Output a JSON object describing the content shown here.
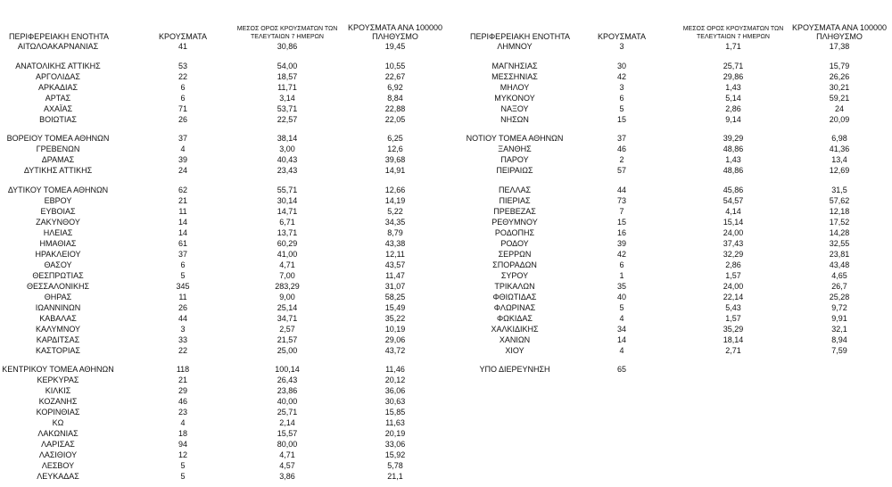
{
  "left": {
    "header": [
      "ΠΕΡΙΦΕΡΕΙΑΚΗ ΕΝΟΤΗΤΑ",
      "ΚΡΟΥΣΜΑΤΑ",
      "ΜΕΣΟΣ ΟΡΟΣ ΚΡΟΥΣΜΑΤΩΝ ΤΩΝ ΤΕΛΕΥΤΑΙΩΝ 7 ΗΜΕΡΩΝ",
      "ΚΡΟΥΣΜΑΤΑ ΑΝΑ 100000 ΠΛΗΘΥΣΜΟ"
    ],
    "groups": [
      [
        [
          "ΑΙΤΩΛΟΑΚΑΡΝΑΝΙΑΣ",
          "41",
          "30,86",
          "19,45"
        ]
      ],
      [
        [
          "ΑΝΑΤΟΛΙΚΗΣ ΑΤΤΙΚΗΣ",
          "53",
          "54,00",
          "10,55"
        ],
        [
          "ΑΡΓΟΛΙΔΑΣ",
          "22",
          "18,57",
          "22,67"
        ],
        [
          "ΑΡΚΑΔΙΑΣ",
          "6",
          "11,71",
          "6,92"
        ],
        [
          "ΑΡΤΑΣ",
          "6",
          "3,14",
          "8,84"
        ],
        [
          "ΑΧΑΪΑΣ",
          "71",
          "53,71",
          "22,88"
        ],
        [
          "ΒΟΙΩΤΙΑΣ",
          "26",
          "22,57",
          "22,05"
        ]
      ],
      [
        [
          "ΒΟΡΕΙΟΥ ΤΟΜΕΑ ΑΘΗΝΩΝ",
          "37",
          "38,14",
          "6,25"
        ],
        [
          "ΓΡΕΒΕΝΩΝ",
          "4",
          "3,00",
          "12,6"
        ],
        [
          "ΔΡΑΜΑΣ",
          "39",
          "40,43",
          "39,68"
        ],
        [
          "ΔΥΤΙΚΗΣ ΑΤΤΙΚΗΣ",
          "24",
          "23,43",
          "14,91"
        ]
      ],
      [
        [
          "ΔΥΤΙΚΟΥ ΤΟΜΕΑ ΑΘΗΝΩΝ",
          "62",
          "55,71",
          "12,66"
        ],
        [
          "ΕΒΡΟΥ",
          "21",
          "30,14",
          "14,19"
        ],
        [
          "ΕΥΒΟΙΑΣ",
          "11",
          "14,71",
          "5,22"
        ],
        [
          "ΖΑΚΥΝΘΟΥ",
          "14",
          "6,71",
          "34,35"
        ],
        [
          "ΗΛΕΙΑΣ",
          "14",
          "13,71",
          "8,79"
        ],
        [
          "ΗΜΑΘΙΑΣ",
          "61",
          "60,29",
          "43,38"
        ],
        [
          "ΗΡΑΚΛΕΙΟΥ",
          "37",
          "41,00",
          "12,11"
        ],
        [
          "ΘΑΣΟΥ",
          "6",
          "4,71",
          "43,57"
        ],
        [
          "ΘΕΣΠΡΩΤΙΑΣ",
          "5",
          "7,00",
          "11,47"
        ],
        [
          "ΘΕΣΣΑΛΟΝΙΚΗΣ",
          "345",
          "283,29",
          "31,07"
        ],
        [
          "ΘΗΡΑΣ",
          "11",
          "9,00",
          "58,25"
        ],
        [
          "ΙΩΑΝΝΙΝΩΝ",
          "26",
          "25,14",
          "15,49"
        ],
        [
          "ΚΑΒΑΛΑΣ",
          "44",
          "34,71",
          "35,22"
        ],
        [
          "ΚΑΛΥΜΝΟΥ",
          "3",
          "2,57",
          "10,19"
        ],
        [
          "ΚΑΡΔΙΤΣΑΣ",
          "33",
          "21,57",
          "29,06"
        ],
        [
          "ΚΑΣΤΟΡΙΑΣ",
          "22",
          "25,00",
          "43,72"
        ]
      ],
      [
        [
          "ΚΕΝΤΡΙΚΟΥ ΤΟΜΕΑ ΑΘΗΝΩΝ",
          "118",
          "100,14",
          "11,46"
        ],
        [
          "ΚΕΡΚΥΡΑΣ",
          "21",
          "26,43",
          "20,12"
        ],
        [
          "ΚΙΛΚΙΣ",
          "29",
          "23,86",
          "36,06"
        ],
        [
          "ΚΟΖΑΝΗΣ",
          "46",
          "40,00",
          "30,63"
        ],
        [
          "ΚΟΡΙΝΘΙΑΣ",
          "23",
          "25,71",
          "15,85"
        ],
        [
          "ΚΩ",
          "4",
          "2,14",
          "11,63"
        ],
        [
          "ΛΑΚΩΝΙΑΣ",
          "18",
          "15,57",
          "20,19"
        ],
        [
          "ΛΑΡΙΣΑΣ",
          "94",
          "80,00",
          "33,06"
        ],
        [
          "ΛΑΣΙΘΙΟΥ",
          "12",
          "4,71",
          "15,92"
        ],
        [
          "ΛΕΣΒΟΥ",
          "5",
          "4,57",
          "5,78"
        ],
        [
          "ΛΕΥΚΑΔΑΣ",
          "5",
          "3,86",
          "21,1"
        ]
      ]
    ]
  },
  "right": {
    "header": [
      "ΠΕΡΙΦΕΡΕΙΑΚΗ ΕΝΟΤΗΤΑ",
      "ΚΡΟΥΣΜΑΤΑ",
      "ΜΕΣΟΣ ΟΡΟΣ ΚΡΟΥΣΜΑΤΩΝ ΤΩΝ ΤΕΛΕΥΤΑΙΩΝ 7 ΗΜΕΡΩΝ",
      "ΚΡΟΥΣΜΑΤΑ ΑΝΑ 100000 ΠΛΗΘΥΣΜΟ"
    ],
    "groups": [
      [
        [
          "ΛΗΜΝΟΥ",
          "3",
          "1,71",
          "17,38"
        ]
      ],
      [
        [
          "ΜΑΓΝΗΣΙΑΣ",
          "30",
          "25,71",
          "15,79"
        ],
        [
          "ΜΕΣΣΗΝΙΑΣ",
          "42",
          "29,86",
          "26,26"
        ],
        [
          "ΜΗΛΟΥ",
          "3",
          "1,43",
          "30,21"
        ],
        [
          "ΜΥΚΟΝΟΥ",
          "6",
          "5,14",
          "59,21"
        ],
        [
          "ΝΑΞΟΥ",
          "5",
          "2,86",
          "24"
        ],
        [
          "ΝΗΣΩΝ",
          "15",
          "9,14",
          "20,09"
        ]
      ],
      [
        [
          "ΝΟΤΙΟΥ ΤΟΜΕΑ ΑΘΗΝΩΝ",
          "37",
          "39,29",
          "6,98"
        ],
        [
          "ΞΑΝΘΗΣ",
          "46",
          "48,86",
          "41,36"
        ],
        [
          "ΠΑΡΟΥ",
          "2",
          "1,43",
          "13,4"
        ],
        [
          "ΠΕΙΡΑΙΩΣ",
          "57",
          "48,86",
          "12,69"
        ]
      ],
      [
        [
          "ΠΕΛΛΑΣ",
          "44",
          "45,86",
          "31,5"
        ],
        [
          "ΠΙΕΡΙΑΣ",
          "73",
          "54,57",
          "57,62"
        ],
        [
          "ΠΡΕΒΕΖΑΣ",
          "7",
          "4,14",
          "12,18"
        ],
        [
          "ΡΕΘΥΜΝΟΥ",
          "15",
          "15,14",
          "17,52"
        ],
        [
          "ΡΟΔΟΠΗΣ",
          "16",
          "24,00",
          "14,28"
        ],
        [
          "ΡΟΔΟΥ",
          "39",
          "37,43",
          "32,55"
        ],
        [
          "ΣΕΡΡΩΝ",
          "42",
          "32,29",
          "23,81"
        ],
        [
          "ΣΠΟΡΑΔΩΝ",
          "6",
          "2,86",
          "43,48"
        ],
        [
          "ΣΥΡΟΥ",
          "1",
          "1,57",
          "4,65"
        ],
        [
          "ΤΡΙΚΑΛΩΝ",
          "35",
          "24,00",
          "26,7"
        ],
        [
          "ΦΘΙΩΤΙΔΑΣ",
          "40",
          "22,14",
          "25,28"
        ],
        [
          "ΦΛΩΡΙΝΑΣ",
          "5",
          "5,43",
          "9,72"
        ],
        [
          "ΦΩΚΙΔΑΣ",
          "4",
          "1,57",
          "9,91"
        ],
        [
          "ΧΑΛΚΙΔΙΚΗΣ",
          "34",
          "35,29",
          "32,1"
        ],
        [
          "ΧΑΝΙΩΝ",
          "14",
          "18,14",
          "8,94"
        ],
        [
          "ΧΙΟΥ",
          "4",
          "2,71",
          "7,59"
        ]
      ],
      [
        [
          "ΥΠΟ ΔΙΕΡΕΥΝΗΣΗ",
          "65"
        ]
      ]
    ]
  }
}
